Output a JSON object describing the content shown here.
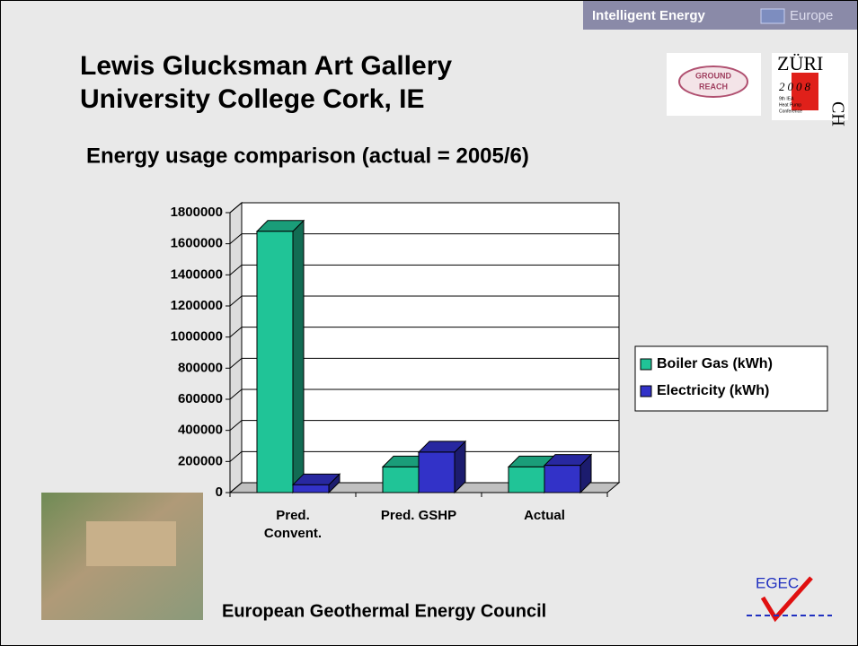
{
  "slide": {
    "banner": "Intelligent Energy",
    "banner_region": "Europe",
    "title_lines": [
      "Lewis Glucksman Art Gallery",
      "University College Cork, IE"
    ],
    "logo_ground": [
      "GROUND",
      "REACH"
    ],
    "logo_zurich": {
      "city": "ZÜRI",
      "country": "CH",
      "year": "2008",
      "conference": [
        "9th IEA",
        "Heat Pump",
        "Conference"
      ]
    },
    "subtitle": "Energy usage comparison (actual = 2005/6)",
    "footer": "European Geothermal Energy Council",
    "egec": "EGEC"
  },
  "chart_data": {
    "type": "bar3d",
    "categories": [
      "Pred. Convent.",
      "Pred. GSHP",
      "Actual"
    ],
    "series": [
      {
        "name": "Boiler Gas (kWh)",
        "color": "#20c497",
        "values": [
          1680000,
          165000,
          165000
        ]
      },
      {
        "name": "Electricity (kWh)",
        "color": "#3232c8",
        "values": [
          50000,
          260000,
          175000
        ]
      }
    ],
    "ylim": [
      0,
      1800000
    ],
    "yticks": [
      0,
      200000,
      400000,
      600000,
      800000,
      1000000,
      1200000,
      1400000,
      1600000,
      1800000
    ],
    "grid": true,
    "legend": "right"
  }
}
